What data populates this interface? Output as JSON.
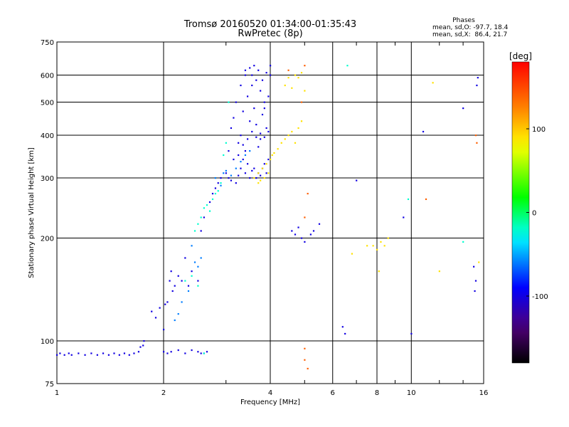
{
  "header": {
    "title_line1": "Tromsø 20160520 01:34:00-01:35:43",
    "title_line2": "RwPretec (8p)"
  },
  "phases_box": {
    "heading": "Phases",
    "line_o": "mean, sd,O: -97.7, 18.4",
    "line_x": "mean, sd,X:  86.4, 21.7"
  },
  "chart_data": {
    "type": "scatter",
    "xlabel": "Frequency [MHz]",
    "ylabel": "Stationary phase Virtual Height [km]",
    "x_scale": "log",
    "y_scale": "log",
    "xlim": [
      1,
      16
    ],
    "ylim": [
      75,
      750
    ],
    "x_ticks": [
      1,
      2,
      4,
      6,
      8,
      10,
      16
    ],
    "x_tick_labels": [
      "1",
      "2",
      "4",
      "6",
      "8",
      "10",
      "16"
    ],
    "y_ticks": [
      75,
      100,
      200,
      300,
      400,
      500,
      600,
      750
    ],
    "y_tick_labels": [
      "75",
      "100",
      "200",
      "300",
      "400",
      "500",
      "600",
      "750"
    ],
    "grid": true,
    "colorbar": {
      "label": "[deg]",
      "range": [
        -180,
        180
      ],
      "ticks": [
        100,
        0,
        -100
      ],
      "tick_labels": [
        "100",
        "0",
        "-100"
      ]
    },
    "series": [
      {
        "phase_deg": -100,
        "points": [
          [
            1.0,
            91
          ],
          [
            1.02,
            92
          ],
          [
            1.05,
            91
          ],
          [
            1.08,
            92
          ],
          [
            1.1,
            91
          ],
          [
            1.15,
            92
          ],
          [
            1.2,
            91
          ],
          [
            1.25,
            92
          ],
          [
            1.3,
            91
          ],
          [
            1.35,
            92
          ],
          [
            1.4,
            91
          ],
          [
            1.45,
            92
          ],
          [
            1.5,
            91
          ],
          [
            1.55,
            92
          ],
          [
            1.6,
            91
          ],
          [
            1.65,
            92
          ],
          [
            1.7,
            93
          ],
          [
            1.72,
            96
          ],
          [
            1.75,
            97
          ],
          [
            1.76,
            100
          ],
          [
            1.85,
            122
          ],
          [
            1.9,
            117
          ],
          [
            1.95,
            125
          ],
          [
            2.0,
            108
          ],
          [
            2.02,
            128
          ],
          [
            2.05,
            130
          ],
          [
            2.08,
            150
          ],
          [
            2.1,
            160
          ],
          [
            2.12,
            140
          ],
          [
            2.15,
            145
          ],
          [
            2.2,
            155
          ],
          [
            2.25,
            150
          ],
          [
            2.3,
            175
          ],
          [
            2.35,
            145
          ],
          [
            2.4,
            160
          ],
          [
            2.5,
            150
          ],
          [
            2.55,
            92
          ],
          [
            2.6,
            92
          ],
          [
            2.65,
            93
          ],
          [
            2.0,
            93
          ],
          [
            2.05,
            92
          ],
          [
            2.1,
            93
          ],
          [
            2.2,
            94
          ],
          [
            2.3,
            92
          ],
          [
            2.4,
            94
          ],
          [
            2.5,
            93
          ],
          [
            2.55,
            210
          ],
          [
            2.6,
            230
          ],
          [
            2.7,
            255
          ],
          [
            2.75,
            270
          ],
          [
            2.8,
            280
          ],
          [
            2.85,
            290
          ],
          [
            2.9,
            300
          ],
          [
            3.0,
            310
          ],
          [
            3.05,
            300
          ],
          [
            3.1,
            295
          ],
          [
            3.2,
            290
          ],
          [
            3.25,
            305
          ],
          [
            3.3,
            320
          ],
          [
            3.35,
            340
          ],
          [
            3.4,
            310
          ],
          [
            3.45,
            330
          ],
          [
            3.5,
            300
          ],
          [
            3.55,
            315
          ],
          [
            3.6,
            320
          ],
          [
            3.65,
            300
          ],
          [
            3.7,
            310
          ],
          [
            3.75,
            305
          ],
          [
            3.8,
            320
          ],
          [
            3.85,
            330
          ],
          [
            3.9,
            310
          ],
          [
            3.95,
            340
          ],
          [
            3.1,
            420
          ],
          [
            3.2,
            500
          ],
          [
            3.3,
            560
          ],
          [
            3.4,
            600
          ],
          [
            3.5,
            630
          ],
          [
            3.6,
            640
          ],
          [
            3.7,
            620
          ],
          [
            3.8,
            580
          ],
          [
            3.9,
            610
          ],
          [
            4.0,
            640
          ],
          [
            3.15,
            450
          ],
          [
            3.25,
            380
          ],
          [
            3.35,
            470
          ],
          [
            3.45,
            520
          ],
          [
            3.55,
            560
          ],
          [
            3.65,
            430
          ],
          [
            3.75,
            390
          ],
          [
            3.85,
            480
          ],
          [
            3.95,
            520
          ],
          [
            4.0,
            600
          ],
          [
            3.3,
            400
          ],
          [
            3.4,
            360
          ],
          [
            3.5,
            440
          ],
          [
            3.6,
            480
          ],
          [
            3.7,
            370
          ],
          [
            3.8,
            460
          ],
          [
            3.9,
            420
          ],
          [
            3.4,
            620
          ],
          [
            3.55,
            600
          ],
          [
            3.65,
            580
          ],
          [
            3.75,
            540
          ],
          [
            3.85,
            500
          ],
          [
            3.05,
            360
          ],
          [
            3.15,
            340
          ],
          [
            3.25,
            350
          ],
          [
            3.35,
            375
          ],
          [
            3.45,
            390
          ],
          [
            3.55,
            410
          ],
          [
            3.65,
            395
          ],
          [
            3.75,
            405
          ],
          [
            3.85,
            395
          ],
          [
            3.95,
            410
          ],
          [
            4.6,
            210
          ],
          [
            4.7,
            205
          ],
          [
            4.8,
            215
          ],
          [
            4.9,
            200
          ],
          [
            5.0,
            195
          ],
          [
            5.2,
            205
          ],
          [
            5.3,
            210
          ],
          [
            5.5,
            220
          ],
          [
            6.4,
            110
          ],
          [
            6.5,
            105
          ],
          [
            7.0,
            295
          ],
          [
            9.5,
            230
          ],
          [
            10.0,
            105
          ],
          [
            10.8,
            410
          ],
          [
            14.0,
            480
          ],
          [
            15.0,
            165
          ],
          [
            15.1,
            140
          ],
          [
            15.2,
            150
          ],
          [
            15.3,
            560
          ],
          [
            15.4,
            590
          ]
        ]
      },
      {
        "phase_deg": -60,
        "points": [
          [
            2.8,
            300
          ],
          [
            2.9,
            285
          ],
          [
            2.95,
            310
          ],
          [
            3.0,
            315
          ],
          [
            3.1,
            305
          ],
          [
            3.2,
            320
          ],
          [
            3.3,
            335
          ],
          [
            3.4,
            350
          ],
          [
            3.5,
            360
          ],
          [
            2.4,
            190
          ],
          [
            2.45,
            170
          ],
          [
            2.5,
            165
          ],
          [
            2.55,
            175
          ],
          [
            2.35,
            140
          ],
          [
            2.25,
            130
          ],
          [
            2.2,
            120
          ],
          [
            2.15,
            115
          ]
        ]
      },
      {
        "phase_deg": -20,
        "points": [
          [
            2.45,
            210
          ],
          [
            2.5,
            220
          ],
          [
            2.55,
            230
          ],
          [
            2.6,
            245
          ],
          [
            2.65,
            250
          ],
          [
            2.7,
            240
          ],
          [
            2.75,
            260
          ],
          [
            2.8,
            270
          ],
          [
            2.85,
            275
          ],
          [
            2.9,
            290
          ],
          [
            2.95,
            350
          ],
          [
            3.0,
            380
          ],
          [
            3.05,
            500
          ],
          [
            2.3,
            150
          ],
          [
            2.4,
            155
          ],
          [
            2.5,
            145
          ],
          [
            2.6,
            92
          ],
          [
            6.6,
            640
          ],
          [
            14.0,
            195
          ],
          [
            9.8,
            260
          ]
        ]
      },
      {
        "phase_deg": 90,
        "points": [
          [
            3.6,
            300
          ],
          [
            3.7,
            310
          ],
          [
            3.8,
            320
          ],
          [
            3.9,
            330
          ],
          [
            4.0,
            340
          ],
          [
            4.05,
            350
          ],
          [
            4.1,
            355
          ],
          [
            4.2,
            365
          ],
          [
            4.3,
            380
          ],
          [
            4.4,
            390
          ],
          [
            4.5,
            400
          ],
          [
            4.6,
            410
          ],
          [
            4.7,
            380
          ],
          [
            4.8,
            420
          ],
          [
            4.9,
            440
          ],
          [
            3.7,
            290
          ],
          [
            3.75,
            295
          ],
          [
            3.85,
            300
          ],
          [
            3.95,
            310
          ],
          [
            4.4,
            560
          ],
          [
            4.5,
            590
          ],
          [
            4.6,
            550
          ],
          [
            4.7,
            600
          ],
          [
            4.8,
            590
          ],
          [
            4.9,
            610
          ],
          [
            5.0,
            540
          ],
          [
            7.8,
            190
          ],
          [
            8.0,
            185
          ],
          [
            8.2,
            195
          ],
          [
            8.4,
            190
          ],
          [
            8.6,
            200
          ],
          [
            6.8,
            180
          ],
          [
            7.5,
            190
          ],
          [
            8.1,
            160
          ],
          [
            11.5,
            570
          ],
          [
            12.0,
            160
          ],
          [
            15.5,
            170
          ]
        ]
      },
      {
        "phase_deg": 140,
        "points": [
          [
            5.0,
            640
          ],
          [
            4.5,
            620
          ],
          [
            4.9,
            500
          ],
          [
            5.1,
            270
          ],
          [
            5.0,
            230
          ],
          [
            5.0,
            95
          ],
          [
            5.0,
            88
          ],
          [
            5.1,
            83
          ],
          [
            15.2,
            400
          ],
          [
            15.3,
            380
          ],
          [
            11.0,
            260
          ]
        ]
      }
    ]
  }
}
